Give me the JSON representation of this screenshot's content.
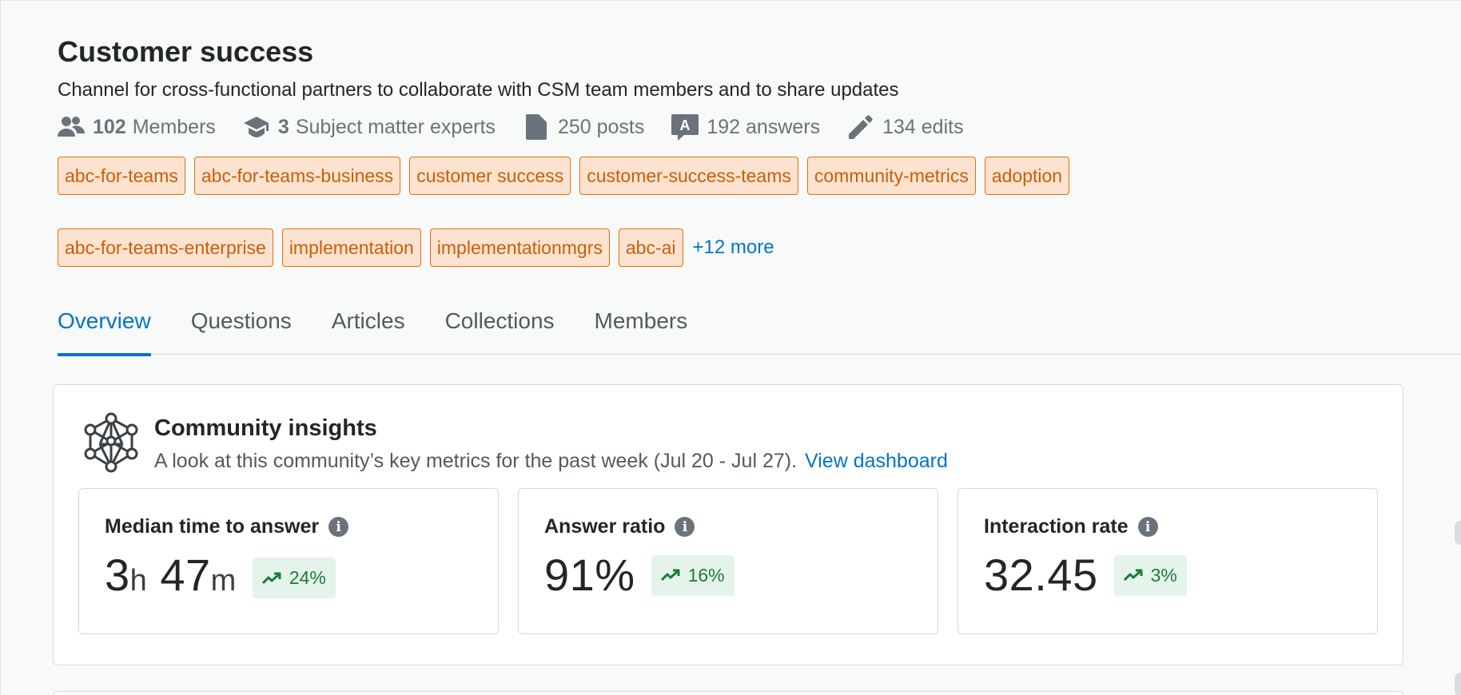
{
  "header": {
    "title": "Customer success",
    "description": "Channel for cross-functional partners to collaborate with CSM team members and to share updates"
  },
  "stats": {
    "members_count": "102",
    "members_label": "Members",
    "sme_count": "3",
    "sme_label": "Subject matter experts",
    "posts": "250 posts",
    "answers": "192 answers",
    "edits": "134 edits"
  },
  "tags": [
    "abc-for-teams",
    "abc-for-teams-business",
    "customer success",
    "customer-success-teams",
    "community-metrics",
    "adoption",
    "abc-for-teams-enterprise",
    "implementation",
    "implementationmgrs",
    "abc-ai"
  ],
  "more_tags_label": "+12 more",
  "tabs": [
    {
      "label": "Overview",
      "active": true
    },
    {
      "label": "Questions",
      "active": false
    },
    {
      "label": "Articles",
      "active": false
    },
    {
      "label": "Collections",
      "active": false
    },
    {
      "label": "Members",
      "active": false
    }
  ],
  "insights": {
    "title": "Community insights",
    "subtitle": "A look at this community’s key metrics for the past week (Jul 20 - Jul 27).",
    "link_label": "View dashboard",
    "icon": "network-icon",
    "metrics": [
      {
        "label": "Median time to answer",
        "hours": "3",
        "hours_unit": "h",
        "minutes": "47",
        "minutes_unit": "m",
        "trend": "24%",
        "trend_direction": "up"
      },
      {
        "label": "Answer ratio",
        "value": "91%",
        "trend": "16%",
        "trend_direction": "up"
      },
      {
        "label": "Interaction rate",
        "value": "32.45",
        "trend": "3%",
        "trend_direction": "up"
      }
    ]
  },
  "colors": {
    "accent": "#0074cc",
    "tag_bg": "#fde3cf",
    "tag_border": "#e4700d",
    "tag_text": "#c95e0a",
    "trend_bg": "#e5f4ea",
    "trend_text": "#1c7b3b"
  }
}
